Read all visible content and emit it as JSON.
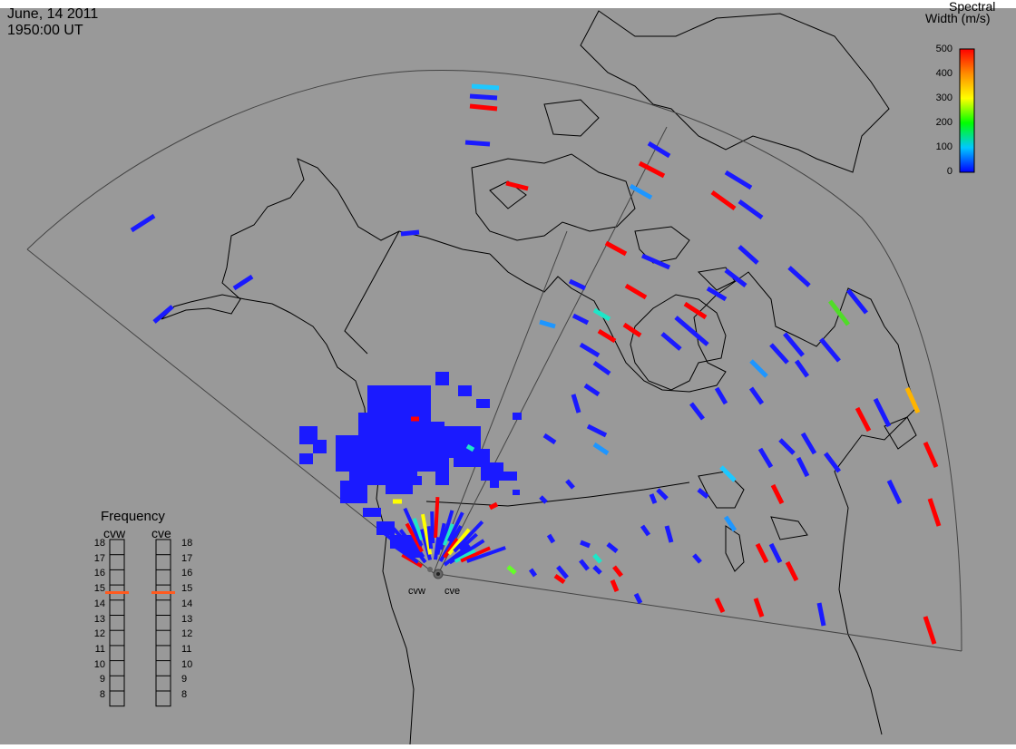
{
  "header": {
    "date": "June, 14 2011",
    "time": "1950:00 UT"
  },
  "colorbar": {
    "title_line1": "Spectral",
    "title_line2": "Width (m/s)",
    "ticks": [
      "500",
      "400",
      "300",
      "200",
      "100",
      "0"
    ],
    "range": [
      0,
      500
    ]
  },
  "stations": {
    "west": "cvw",
    "east": "cve"
  },
  "frequency_panel": {
    "title": "Frequency",
    "col_west": "cvw",
    "col_east": "cve",
    "scale": [
      "18",
      "17",
      "16",
      "15",
      "14",
      "13",
      "12",
      "11",
      "10",
      "9",
      "8"
    ],
    "cvw_frequency": 15,
    "cve_frequency": 15
  },
  "colors": {
    "background": "#999999",
    "low_width": "#1a1aff",
    "high_width": "#ff0000",
    "indicator": "#ff5a1f"
  }
}
